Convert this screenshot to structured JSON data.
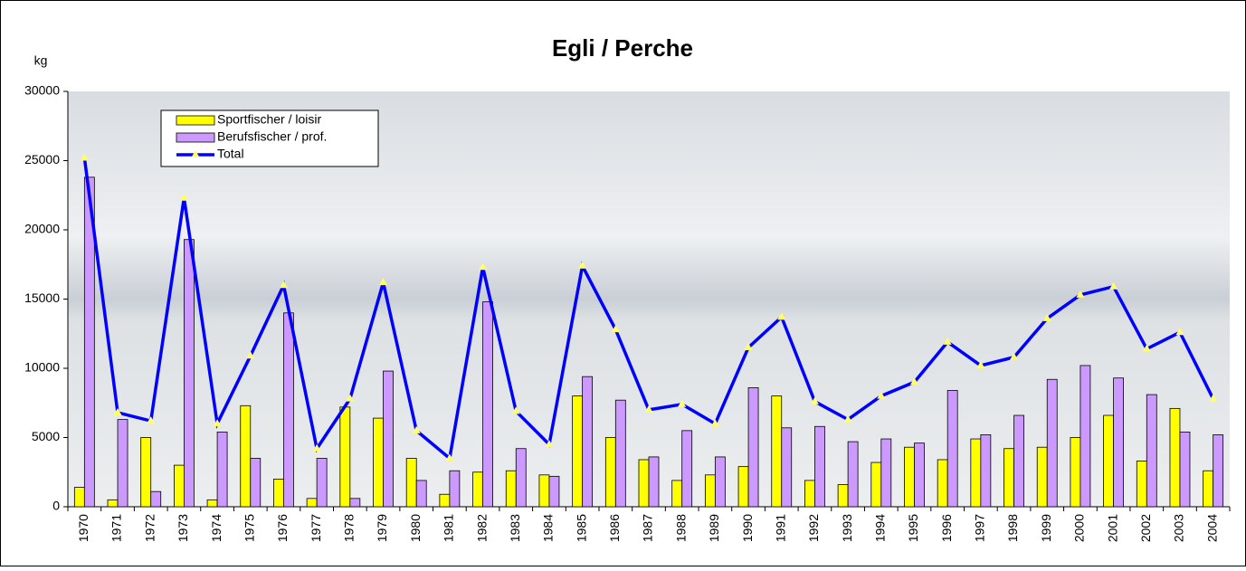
{
  "chart_data": {
    "type": "bar-line",
    "title": "Egli / Perche",
    "y_label": "kg",
    "categories": [
      "1970",
      "1971",
      "1972",
      "1973",
      "1974",
      "1975",
      "1976",
      "1977",
      "1978",
      "1979",
      "1980",
      "1981",
      "1982",
      "1983",
      "1984",
      "1985",
      "1986",
      "1987",
      "1988",
      "1989",
      "1990",
      "1991",
      "1992",
      "1993",
      "1994",
      "1995",
      "1996",
      "1997",
      "1998",
      "1999",
      "2000",
      "2001",
      "2002",
      "2003",
      "2004"
    ],
    "series": [
      {
        "name": "Sportfischer / loisir",
        "type": "bar",
        "color": "#ffff00",
        "values": [
          1400,
          500,
          5000,
          3000,
          500,
          7300,
          2000,
          600,
          7200,
          6400,
          3500,
          900,
          2500,
          2600,
          2300,
          8000,
          5000,
          3400,
          1900,
          2300,
          2900,
          8000,
          1900,
          1600,
          3200,
          4300,
          3400,
          4900,
          4200,
          4300,
          5000,
          6600,
          3300,
          7100,
          2600
        ]
      },
      {
        "name": "Berufsfischer / prof.",
        "type": "bar",
        "color": "#cc99ff",
        "values": [
          23800,
          6300,
          1100,
          19300,
          5400,
          3500,
          14000,
          3500,
          600,
          9800,
          1900,
          2600,
          14800,
          4200,
          2200,
          9400,
          7700,
          3600,
          5500,
          3600,
          8600,
          5700,
          5800,
          4700,
          4900,
          4600,
          8400,
          5200,
          6600,
          9200,
          10200,
          9300,
          8100,
          5400,
          5200
        ]
      },
      {
        "name": "Total",
        "type": "line",
        "color": "#0000ff",
        "marker_color": "#ffff66",
        "values": [
          25200,
          6800,
          6200,
          22300,
          6000,
          10900,
          16000,
          4200,
          7800,
          16200,
          5500,
          3500,
          17300,
          6900,
          4500,
          17400,
          12800,
          7000,
          7400,
          6000,
          11500,
          13700,
          7600,
          6300,
          8000,
          9000,
          11900,
          10200,
          10800,
          13600,
          15300,
          15900,
          11400,
          12600,
          7800
        ]
      }
    ],
    "ylim": [
      0,
      30000
    ],
    "yticks": [
      0,
      5000,
      10000,
      15000,
      20000,
      25000,
      30000
    ],
    "grid": false
  }
}
